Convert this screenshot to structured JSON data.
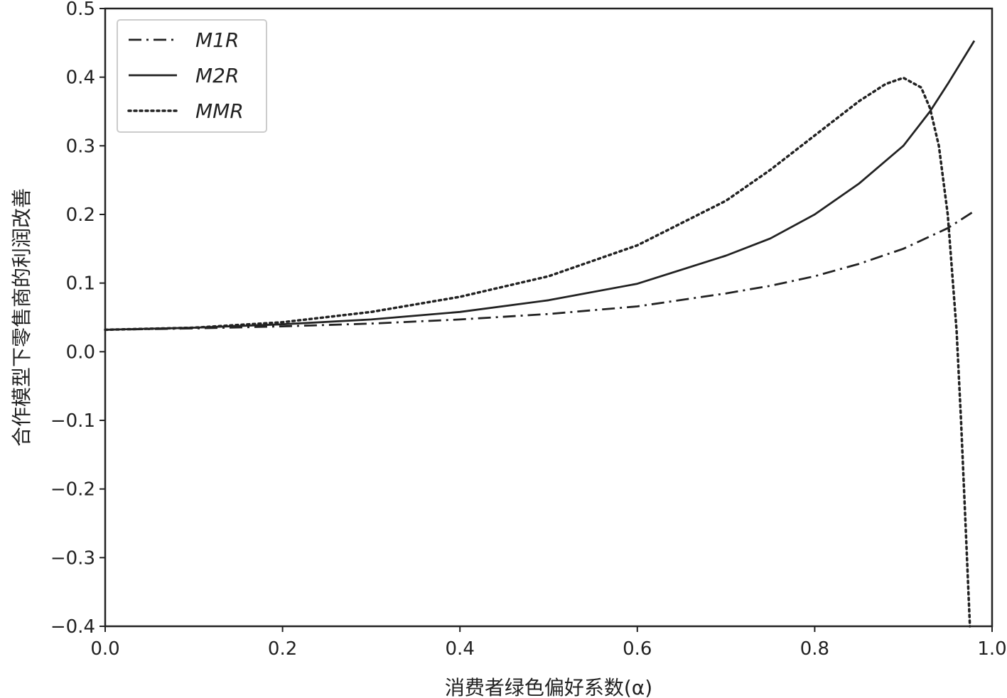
{
  "chart_data": {
    "type": "line",
    "title": "",
    "xlabel": "消费者绿色偏好系数(α)",
    "ylabel": "合作模型下零售商的利润改善",
    "xlim": [
      0.0,
      1.0
    ],
    "ylim": [
      -0.4,
      0.5
    ],
    "xticks": [
      0.0,
      0.2,
      0.4,
      0.6,
      0.8,
      1.0
    ],
    "xtick_labels": [
      "0.0",
      "0.2",
      "0.4",
      "0.6",
      "0.8",
      "1.0"
    ],
    "yticks": [
      0.5,
      0.4,
      0.3,
      0.2,
      0.1,
      0.0,
      -0.1,
      -0.2,
      -0.3,
      -0.4
    ],
    "ytick_labels": [
      "0.5",
      "0.4",
      "0.3",
      "0.2",
      "0.1",
      "0.0",
      "−0.1",
      "−0.2",
      "−0.3",
      "−0.4"
    ],
    "legend_position": "top-left",
    "grid": false,
    "series": [
      {
        "name": "M1R",
        "style": "dashdot",
        "color": "#222222",
        "x": [
          0.0,
          0.1,
          0.2,
          0.3,
          0.4,
          0.5,
          0.6,
          0.7,
          0.75,
          0.8,
          0.85,
          0.9,
          0.95,
          0.98
        ],
        "y": [
          0.032,
          0.034,
          0.037,
          0.041,
          0.047,
          0.055,
          0.066,
          0.085,
          0.096,
          0.11,
          0.128,
          0.15,
          0.18,
          0.205
        ]
      },
      {
        "name": "M2R",
        "style": "solid",
        "color": "#222222",
        "x": [
          0.0,
          0.1,
          0.2,
          0.3,
          0.4,
          0.5,
          0.6,
          0.7,
          0.75,
          0.8,
          0.85,
          0.9,
          0.93,
          0.95,
          0.98
        ],
        "y": [
          0.032,
          0.035,
          0.04,
          0.047,
          0.058,
          0.075,
          0.099,
          0.14,
          0.165,
          0.2,
          0.245,
          0.3,
          0.35,
          0.39,
          0.453
        ]
      },
      {
        "name": "MMR",
        "style": "dotted",
        "color": "#222222",
        "x": [
          0.0,
          0.1,
          0.2,
          0.3,
          0.4,
          0.5,
          0.6,
          0.7,
          0.75,
          0.8,
          0.85,
          0.88,
          0.9,
          0.92,
          0.93,
          0.94,
          0.95,
          0.96,
          0.965,
          0.97,
          0.975
        ],
        "y": [
          0.032,
          0.035,
          0.043,
          0.058,
          0.08,
          0.11,
          0.155,
          0.22,
          0.265,
          0.315,
          0.365,
          0.39,
          0.399,
          0.385,
          0.355,
          0.3,
          0.2,
          0.03,
          -0.1,
          -0.25,
          -0.4
        ]
      }
    ]
  }
}
